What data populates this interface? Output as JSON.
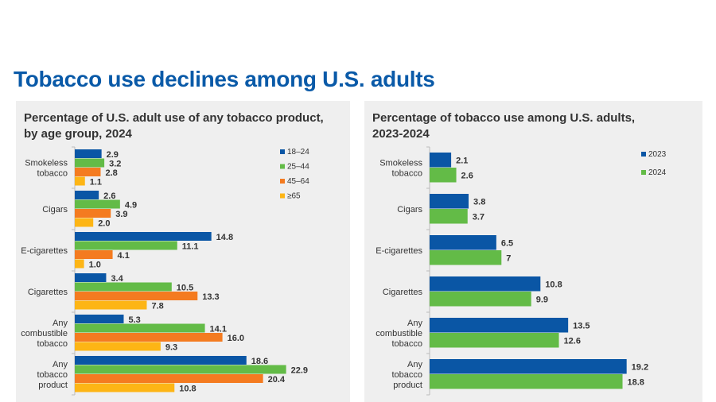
{
  "page_title": "Tobacco use declines among U.S. adults",
  "chart_data": [
    {
      "type": "bar",
      "orientation": "horizontal",
      "title": "Percentage of U.S. adult use of any tobacco product, by age group, 2024",
      "title_lines": [
        "Percentage of U.S. adult use of any tobacco product,",
        "by age group, 2024"
      ],
      "categories": [
        [
          "Smokeless",
          "tobacco"
        ],
        [
          "Cigars"
        ],
        [
          "E-cigarettes"
        ],
        [
          "Cigarettes"
        ],
        [
          "Any",
          "combustible",
          "tobacco"
        ],
        [
          "Any",
          "tobacco",
          "product"
        ]
      ],
      "series": [
        {
          "name": "18–24",
          "color": "#0a56a5",
          "values": [
            2.9,
            2.6,
            14.8,
            3.4,
            5.3,
            18.6
          ]
        },
        {
          "name": "25–44",
          "color": "#63bb47",
          "values": [
            3.2,
            4.9,
            11.1,
            10.5,
            14.1,
            22.9
          ]
        },
        {
          "name": "45–64",
          "color": "#f47b20",
          "values": [
            2.8,
            3.9,
            4.1,
            13.3,
            16.0,
            20.4
          ]
        },
        {
          "name": "≥65",
          "color": "#fdb515",
          "values": [
            1.1,
            2.0,
            1.0,
            7.8,
            9.3,
            10.8
          ]
        }
      ],
      "legend": "top-right",
      "xlim": [
        0,
        23
      ]
    },
    {
      "type": "bar",
      "orientation": "horizontal",
      "title": "Percentage of tobacco use among U.S. adults, 2023-2024",
      "title_lines": [
        "Percentage of tobacco use among U.S. adults,",
        "2023-2024"
      ],
      "categories": [
        [
          "Smokeless",
          "tobacco"
        ],
        [
          "Cigars"
        ],
        [
          "E-cigarettes"
        ],
        [
          "Cigarettes"
        ],
        [
          "Any",
          "combustible",
          "tobacco"
        ],
        [
          "Any",
          "tobacco",
          "product"
        ]
      ],
      "series": [
        {
          "name": "2023",
          "color": "#0a56a5",
          "values": [
            2.1,
            3.8,
            6.5,
            10.8,
            13.5,
            19.2
          ],
          "labels": [
            "2.1",
            "3.8",
            "6.5",
            "10.8",
            "13.5",
            "19.2"
          ]
        },
        {
          "name": "2024",
          "color": "#63bb47",
          "values": [
            2.6,
            3.7,
            7,
            9.9,
            12.6,
            18.8
          ],
          "labels": [
            "2.6",
            "3.7",
            "7",
            "9.9",
            "12.6",
            "18.8"
          ]
        }
      ],
      "legend": "top-right",
      "xlim": [
        0,
        19.5
      ]
    }
  ]
}
